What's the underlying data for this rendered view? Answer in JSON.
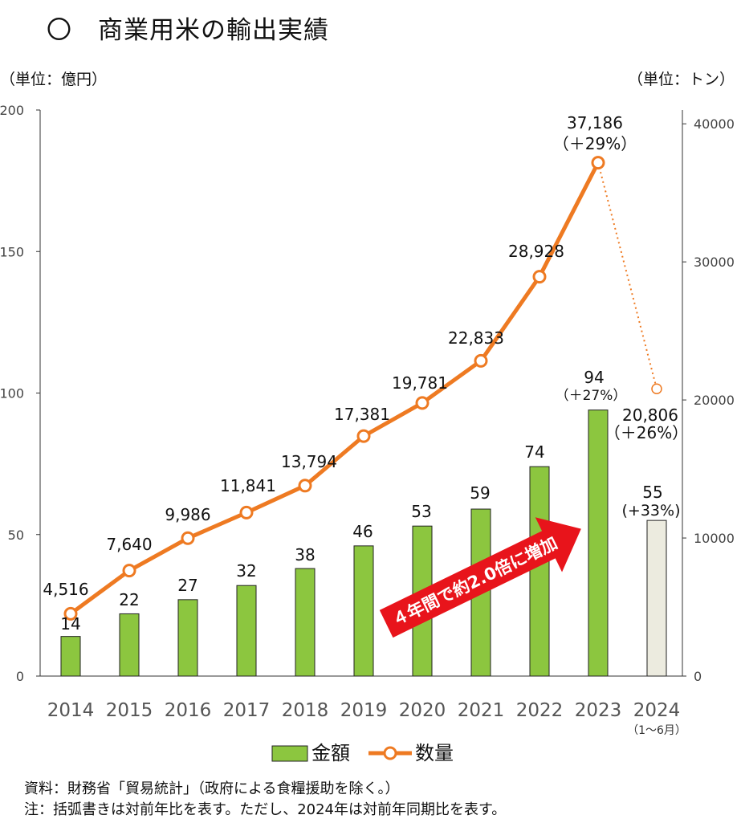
{
  "title": "〇　商業用米の輸出実績",
  "notes": {
    "source": "資料：財務省「貿易統計」（政府による食糧援助を除く。）",
    "note": "注：括弧書きは対前年比を表す。ただし、2024年は対前年同期比を表す。"
  },
  "chart_data": {
    "type": "bar+line",
    "categories": [
      "2014",
      "2015",
      "2016",
      "2017",
      "2018",
      "2019",
      "2020",
      "2021",
      "2022",
      "2023",
      "2024"
    ],
    "category_sublabel": {
      "index": 10,
      "text": "（1～6月）"
    },
    "y_left": {
      "unit_label": "（単位：億円）",
      "ylim": [
        0,
        200
      ],
      "ticks": [
        "0",
        "50",
        "100",
        "150",
        "200"
      ]
    },
    "y_right": {
      "unit_label": "（単位：トン）",
      "ylim": [
        0,
        41000
      ],
      "ticks": [
        "0",
        "10000",
        "20000",
        "30000",
        "40000"
      ]
    },
    "series": [
      {
        "name": "金額",
        "type": "bar",
        "axis": "left",
        "values": [
          14,
          22,
          27,
          32,
          38,
          46,
          53,
          59,
          74,
          94,
          55
        ],
        "labels": [
          "14",
          "22",
          "27",
          "32",
          "38",
          "46",
          "53",
          "59",
          "74",
          "94",
          "55"
        ],
        "sublabels": {
          "9": "（＋27%）",
          "10": "(+33%)"
        },
        "color": "#8cc63f",
        "highlight": {
          "index": 10,
          "color": "#ecebdf"
        }
      },
      {
        "name": "数量",
        "type": "line",
        "axis": "right",
        "values": [
          4516,
          7640,
          9986,
          11841,
          13794,
          17381,
          19781,
          22833,
          28928,
          37186,
          20806
        ],
        "labels": [
          "4,516",
          "7,640",
          "9,986",
          "11,841",
          "13,794",
          "17,381",
          "19,781",
          "22,833",
          "28,928",
          "37,186",
          "20,806"
        ],
        "sublabels": {
          "9": "（＋29%）",
          "10": "（＋26%）"
        },
        "color": "#ee7a22"
      }
    ],
    "annotation": {
      "text": "４年間で約2.0倍に増加",
      "color": "#e8141b"
    },
    "legend": {
      "placement": "bottom-center"
    },
    "grid": false
  }
}
